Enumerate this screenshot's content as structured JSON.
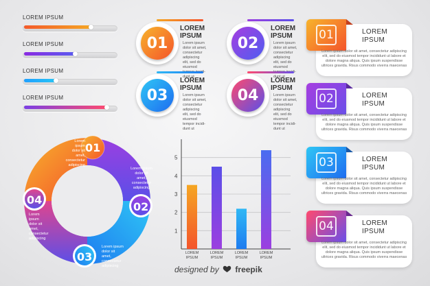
{
  "progress_bars": [
    {
      "label": "LOREM IPSUM",
      "level_percent": 73,
      "color_from": "#f45a2b",
      "color_to": "#f5a623"
    },
    {
      "label": "LOREM IPSUM",
      "level_percent": 56,
      "color_from": "#8a2be2",
      "color_to": "#5b5cf0"
    },
    {
      "label": "LOREM IPSUM",
      "level_percent": 35,
      "color_from": "#1ea0ff",
      "color_to": "#27c4f5"
    },
    {
      "label": "LOREM IPSUM",
      "level_percent": 90,
      "color_from": "#7b3fe4",
      "color_to": "#ff4a6e"
    }
  ],
  "circles": [
    {
      "number": "01",
      "title_1": "LOREM",
      "title_2": "IPSUM",
      "desc": [
        "Lorem ipsum",
        "dolor sit amet,",
        "consectetur",
        "adipiscing",
        "elit, sed do",
        "eiusmod",
        "tempor incidi-",
        "dunt ut"
      ]
    },
    {
      "number": "02",
      "title_1": "LOREM",
      "title_2": "IPSUM",
      "desc": [
        "Lorem ipsum",
        "dolor sit amet,",
        "consectetur",
        "adipiscing",
        "elit, sed do",
        "eiusmod",
        "tempor incidi-",
        "dunt ut"
      ]
    },
    {
      "number": "03",
      "title_1": "LOREM",
      "title_2": "IPSUM",
      "desc": [
        "Lorem ipsum",
        "dolor sit amet,",
        "consectetur",
        "adipiscing",
        "elit, sed do",
        "eiusmod",
        "tempor incidi-",
        "dunt ut"
      ]
    },
    {
      "number": "04",
      "title_1": "LOREM",
      "title_2": "IPSUM",
      "desc": [
        "Lorem ipsum",
        "dolor sit amet,",
        "consectetur",
        "adipiscing",
        "elit, sed do",
        "eiusmod",
        "tempor incidi-",
        "dunt ut"
      ]
    }
  ],
  "cards": [
    {
      "number": "01",
      "title_1": "LOREM",
      "title_2": "IPSUM",
      "desc": [
        "Lorem ipsum dolor sit amet, consectetur adipiscing",
        "elit, sed do eiusmod tempor incididunt ut labore et",
        "dolore magna aliqua. Quis ipsum suspendisse",
        "ultrices gravida. Risus commodo viverra maecenas"
      ]
    },
    {
      "number": "02",
      "title_1": "LOREM",
      "title_2": "IPSUM",
      "desc": [
        "Lorem ipsum dolor sit amet, consectetur adipiscing",
        "elit, sed do eiusmod tempor incididunt ut labore et",
        "dolore magna aliqua. Quis ipsum suspendisse",
        "ultrices gravida. Risus commodo viverra maecenas"
      ]
    },
    {
      "number": "03",
      "title_1": "LOREM",
      "title_2": "IPSUM",
      "desc": [
        "Lorem ipsum dolor sit amet, consectetur adipiscing",
        "elit, sed do eiusmod tempor incididunt ut labore et",
        "dolore magna aliqua. Quis ipsum suspendisse",
        "ultrices gravida. Risus commodo viverra maecenas"
      ]
    },
    {
      "number": "04",
      "title_1": "LOREM",
      "title_2": "IPSUM",
      "desc": [
        "Lorem ipsum dolor sit amet, consectetur adipiscing",
        "elit, sed do eiusmod tempor incididunt ut labore et",
        "dolore magna aliqua. Quis ipsum suspendisse",
        "ultrices gravida. Risus commodo viverra maecenas"
      ]
    }
  ],
  "ring": {
    "segments": [
      {
        "number": "01",
        "desc": [
          "Lorem ipsum",
          "dolor sit",
          "amet,",
          "consectetur",
          "adipiscing",
          "elit, sed do",
          "eiusmod",
          "tempor"
        ]
      },
      {
        "number": "02",
        "desc": [
          "Lorem ipsum",
          "dolor sit",
          "amet,",
          "consectetur",
          "adipiscing",
          "elit, sed do",
          "eiusmod",
          "tempor"
        ]
      },
      {
        "number": "03",
        "desc": [
          "Lorem ipsum",
          "dolor sit",
          "amet,",
          "consectetur",
          "adipiscing",
          "elit, sed do",
          "eiusmod",
          "tempor"
        ]
      },
      {
        "number": "04",
        "desc": [
          "Lorem ipsum",
          "dolor sit",
          "amet,",
          "consectetur",
          "adipiscing",
          "elit, sed do",
          "eiusmod",
          "tempor"
        ]
      }
    ]
  },
  "chart_data": {
    "type": "bar",
    "categories": [
      "LOREM IPSUM",
      "LOREM IPSUM",
      "LOREM IPSUM",
      "LOREM IPSUM"
    ],
    "values": [
      3.5,
      4.5,
      2.2,
      5.4
    ],
    "colors": [
      [
        "#f5a623",
        "#f4542b"
      ],
      [
        "#5b4fe8",
        "#9b3fe0"
      ],
      [
        "#2fb7f5",
        "#1e7cf0"
      ],
      [
        "#4a6cf0",
        "#9b3fe0"
      ]
    ],
    "yticks": [
      "1",
      "2",
      "3",
      "4",
      "5"
    ],
    "ylim": [
      0,
      6
    ],
    "grid": true,
    "legend": "none"
  },
  "credit": {
    "text": "designed by",
    "brand": "freepik"
  }
}
